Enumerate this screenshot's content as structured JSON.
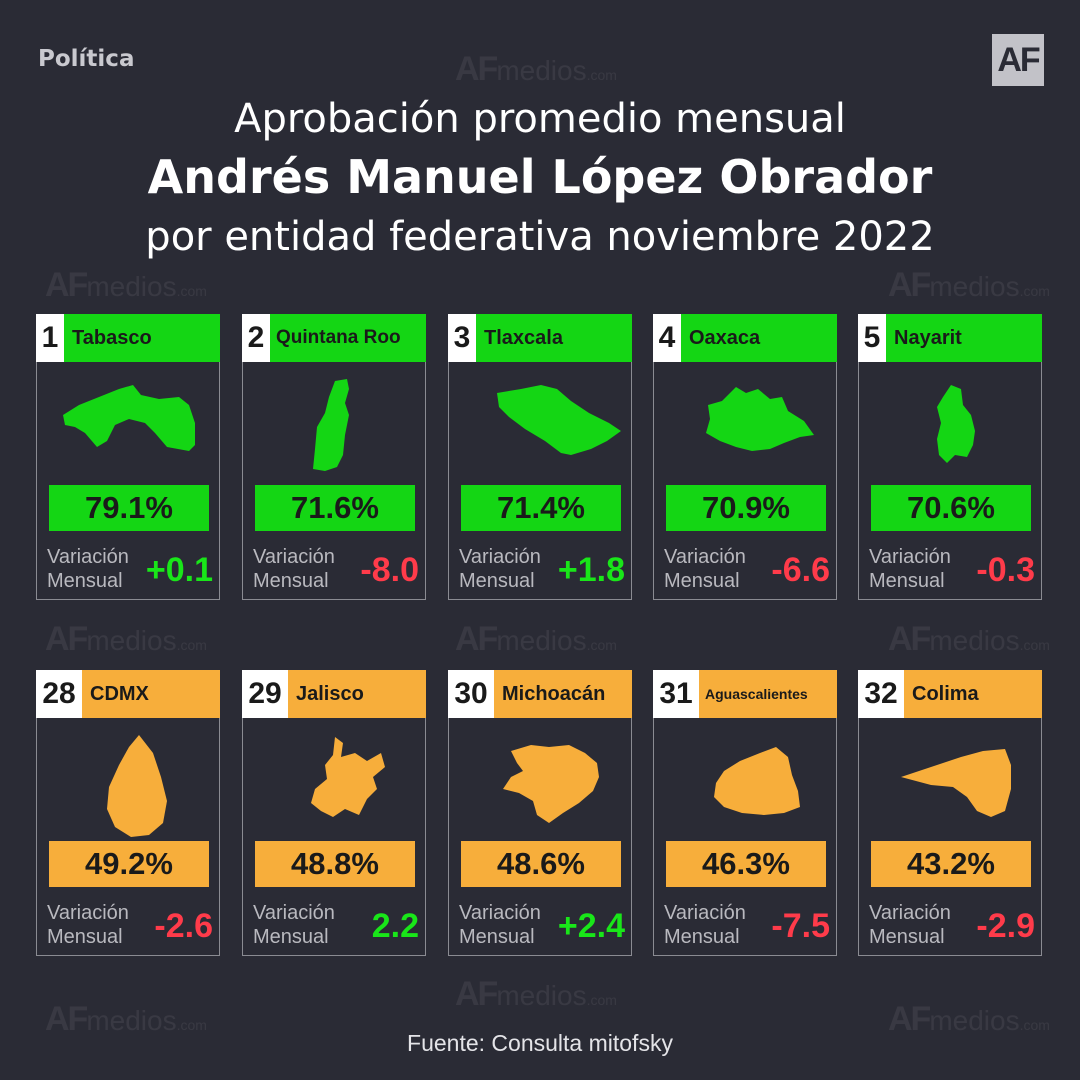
{
  "header": {
    "section": "Política",
    "logo": "AF",
    "title_line1": "Aprobación promedio mensual",
    "title_line2": "Andrés Manuel López Obrador",
    "title_line3": "por entidad federativa noviembre 2022"
  },
  "watermark": {
    "bold": "AF",
    "text": "medios",
    "suffix": ".com"
  },
  "variation_label": {
    "line1": "Variación",
    "line2": "Mensual"
  },
  "colors": {
    "top": "#14d614",
    "bottom": "#f7ae3b",
    "positive": "#19e619",
    "negative": "#ff3b4a",
    "background": "#2a2b35"
  },
  "top_states": [
    {
      "rank": "1",
      "name": "Tabasco",
      "approval": "79.1%",
      "variation": "+0.1",
      "trend": "pos"
    },
    {
      "rank": "2",
      "name": "Quintana Roo",
      "approval": "71.6%",
      "variation": "-8.0",
      "trend": "neg"
    },
    {
      "rank": "3",
      "name": "Tlaxcala",
      "approval": "71.4%",
      "variation": "+1.8",
      "trend": "pos"
    },
    {
      "rank": "4",
      "name": "Oaxaca",
      "approval": "70.9%",
      "variation": "-6.6",
      "trend": "neg"
    },
    {
      "rank": "5",
      "name": "Nayarit",
      "approval": "70.6%",
      "variation": "-0.3",
      "trend": "neg"
    }
  ],
  "bottom_states": [
    {
      "rank": "28",
      "name": "CDMX",
      "approval": "49.2%",
      "variation": "-2.6",
      "trend": "neg"
    },
    {
      "rank": "29",
      "name": "Jalisco",
      "approval": "48.8%",
      "variation": "2.2",
      "trend": "pos"
    },
    {
      "rank": "30",
      "name": "Michoacán",
      "approval": "48.6%",
      "variation": "+2.4",
      "trend": "pos"
    },
    {
      "rank": "31",
      "name": "Aguascalientes",
      "approval": "46.3%",
      "variation": "-7.5",
      "trend": "neg"
    },
    {
      "rank": "32",
      "name": "Colima",
      "approval": "43.2%",
      "variation": "-2.9",
      "trend": "neg"
    }
  ],
  "footer": {
    "source": "Fuente: Consulta mitofsky"
  }
}
